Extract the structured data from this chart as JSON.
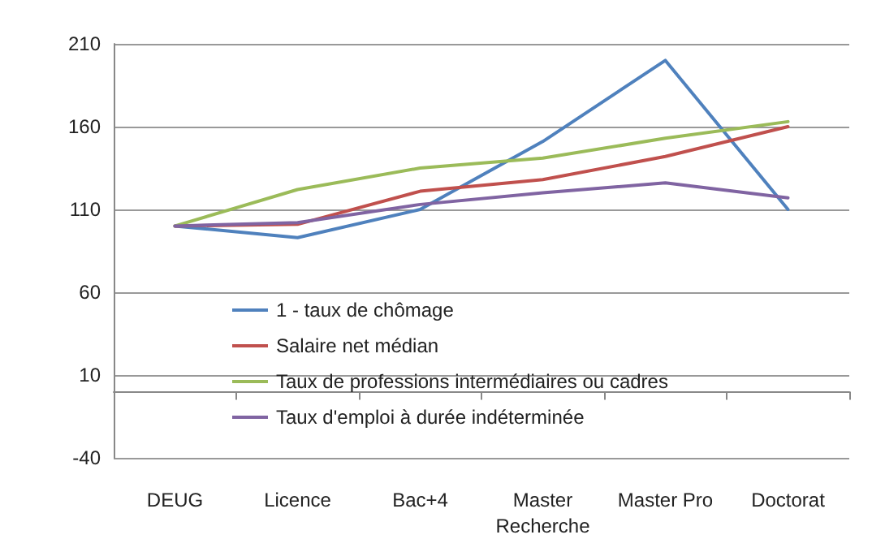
{
  "chart_data": {
    "type": "line",
    "categories": [
      "DEUG",
      "Licence",
      "Bac+4",
      "Master\nRecherche",
      "Master Pro",
      "Doctorat"
    ],
    "series": [
      {
        "name": "1 - taux de chômage",
        "color": "#4f81bd",
        "values": [
          100,
          93,
          110,
          151,
          200,
          110
        ]
      },
      {
        "name": "Salaire net médian",
        "color": "#c0504d",
        "values": [
          100,
          101,
          121,
          128,
          142,
          160
        ]
      },
      {
        "name": "Taux de professions intermédiaires ou cadres",
        "color": "#9bbb59",
        "values": [
          100,
          122,
          135,
          141,
          153,
          163
        ]
      },
      {
        "name": "Taux d'emploi à durée indéterminée",
        "color": "#8064a2",
        "values": [
          100,
          102,
          113,
          120,
          126,
          117
        ]
      }
    ],
    "ylim": [
      -40,
      210
    ],
    "yticks": [
      -40,
      10,
      60,
      110,
      160,
      210
    ],
    "grid": "y",
    "legend": "bottom left",
    "marker": "none",
    "line_style": "solid"
  }
}
